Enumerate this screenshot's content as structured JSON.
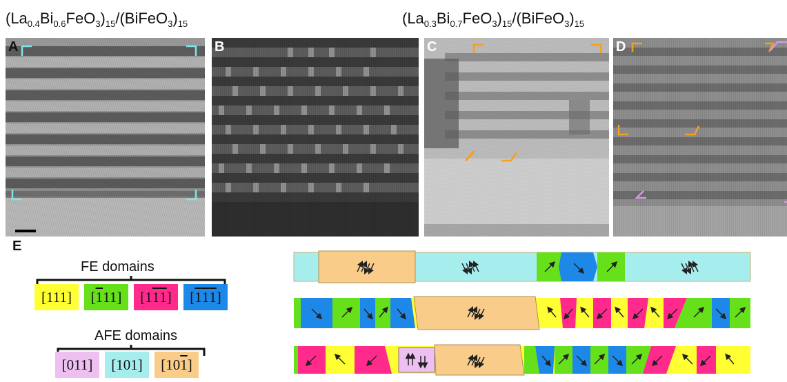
{
  "titles": {
    "left": {
      "a": "(La",
      "s1": "0.4",
      "b": "Bi",
      "s2": "0.6",
      "c": "FeO",
      "s3": "3",
      "d": ")",
      "s4": "15",
      "e": "/(BiFeO",
      "s5": "3",
      "f": ")",
      "s6": "15"
    },
    "right": {
      "a": "(La",
      "s1": "0.3",
      "b": "Bi",
      "s2": "0.7",
      "c": "FeO",
      "s3": "3",
      "d": ")",
      "s4": "15",
      "e": "/(BiFeO",
      "s5": "3",
      "f": ")",
      "s6": "15"
    }
  },
  "panels": [
    {
      "letter": "A"
    },
    {
      "letter": "B"
    },
    {
      "letter": "C"
    },
    {
      "letter": "D"
    }
  ],
  "legend": {
    "section_label": "E",
    "fe_title": "FE domains",
    "afe_title": "AFE domains",
    "fe_boxes": [
      {
        "color": "#ffff33",
        "a": "[111]"
      },
      {
        "color": "#66e01a",
        "pre": "[",
        "bar": "1",
        "post": "11]"
      },
      {
        "color": "#ff2a8c",
        "pre": "[1",
        "bar": "1",
        "bar2": "1",
        "post": "]"
      },
      {
        "color": "#1e88e8",
        "pre": "[",
        "bar": "1",
        "bar2": "1",
        "bar3": "1",
        "post": "]"
      }
    ],
    "afe_boxes": [
      {
        "color": "#eec0f2",
        "a": "[011]"
      },
      {
        "color": "#a6eeee",
        "a": "[101]"
      },
      {
        "color": "#f9cc8a",
        "pre": "[10",
        "bar": "1",
        "post": "]"
      }
    ]
  },
  "colors": {
    "yellow": "#ffff33",
    "green": "#66e01a",
    "pink": "#ff2a8c",
    "blue": "#1e88e8",
    "violet": "#eec0f2",
    "cyan": "#a6eeee",
    "orange": "#f9cc8a"
  }
}
